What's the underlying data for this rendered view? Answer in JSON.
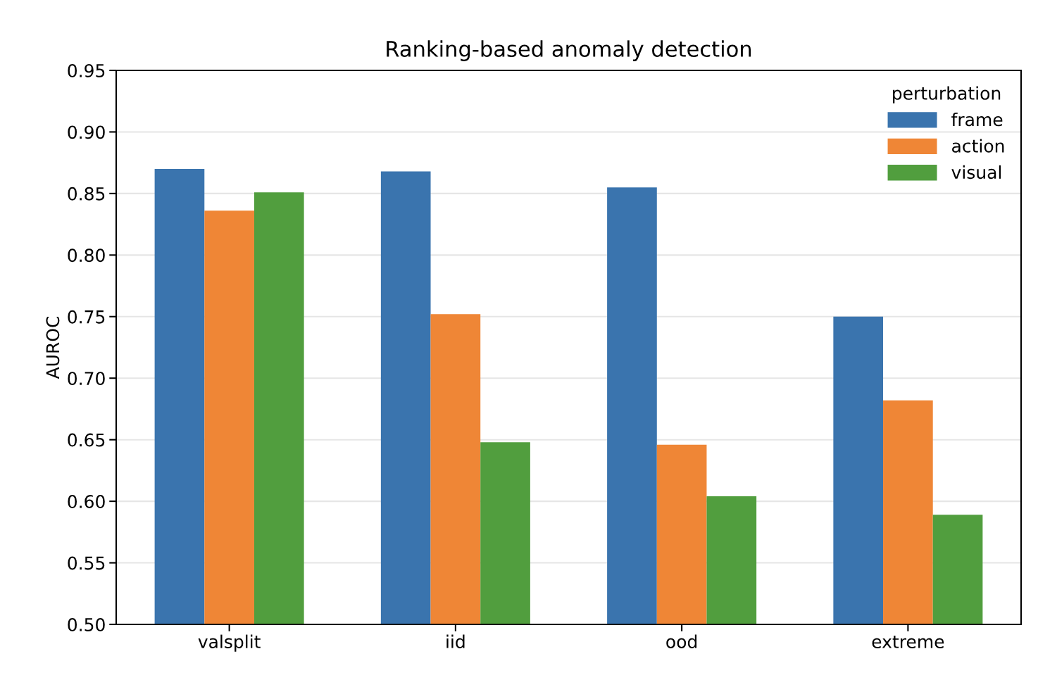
{
  "chart_data": {
    "type": "bar",
    "title": "Ranking-based anomaly detection",
    "ylabel": "AUROC",
    "legend_title": "perturbation",
    "categories": [
      "valsplit",
      "iid",
      "ood",
      "extreme"
    ],
    "series": [
      {
        "name": "frame",
        "color": "#3a74ae",
        "values": [
          0.87,
          0.868,
          0.855,
          0.75
        ]
      },
      {
        "name": "action",
        "color": "#ef8636",
        "values": [
          0.836,
          0.752,
          0.646,
          0.682
        ]
      },
      {
        "name": "visual",
        "color": "#519e3e",
        "values": [
          0.851,
          0.648,
          0.604,
          0.589
        ]
      }
    ],
    "ylim": [
      0.5,
      0.95
    ],
    "yticks": [
      {
        "value": 0.5,
        "label": "0.50"
      },
      {
        "value": 0.55,
        "label": "0.55"
      },
      {
        "value": 0.6,
        "label": "0.60"
      },
      {
        "value": 0.65,
        "label": "0.65"
      },
      {
        "value": 0.7,
        "label": "0.70"
      },
      {
        "value": 0.75,
        "label": "0.75"
      },
      {
        "value": 0.8,
        "label": "0.80"
      },
      {
        "value": 0.85,
        "label": "0.85"
      },
      {
        "value": 0.9,
        "label": "0.90"
      },
      {
        "value": 0.95,
        "label": "0.95"
      }
    ],
    "grid": "y",
    "legend": "top right"
  }
}
